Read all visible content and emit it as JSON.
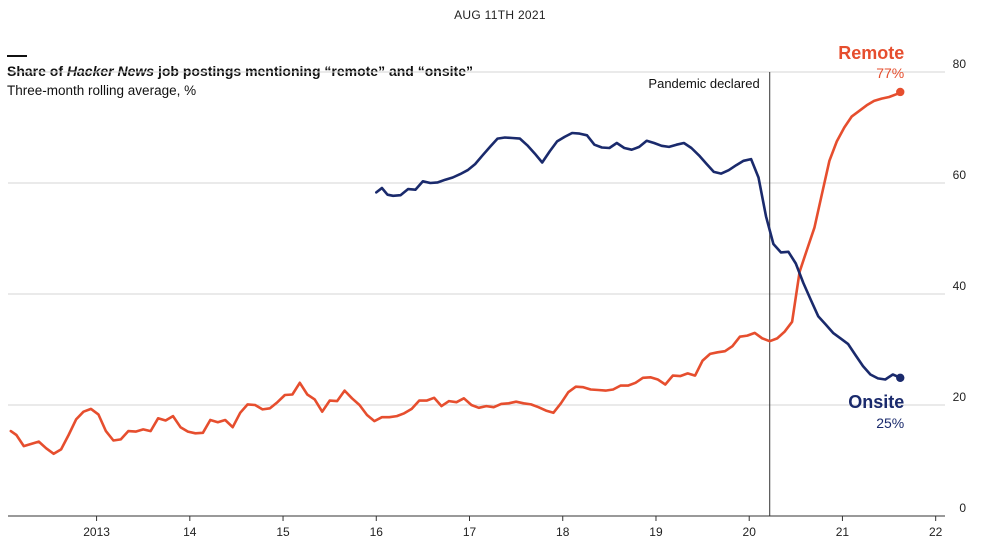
{
  "header": {
    "date": "AUG 11TH 2021",
    "title_pre": "Share of ",
    "title_em": "Hacker News",
    "title_post": " job postings mentioning “remote” and “onsite”",
    "subtitle": "Three-month rolling average, %"
  },
  "colors": {
    "remote": "#e64e2e",
    "onsite": "#1a2a6c",
    "grid": "#d6d6d6",
    "axis": "#333333"
  },
  "chart_data": {
    "type": "line",
    "title": "Share of Hacker News job postings mentioning “remote” and “onsite”",
    "subtitle": "Three-month rolling average, %",
    "ylim": [
      0,
      80
    ],
    "yticks": [
      0,
      20,
      40,
      60,
      80
    ],
    "xlim": [
      2012.05,
      2022.1
    ],
    "xticks": [
      {
        "x": 2013,
        "label": "2013"
      },
      {
        "x": 2014,
        "label": "14"
      },
      {
        "x": 2015,
        "label": "15"
      },
      {
        "x": 2016,
        "label": "16"
      },
      {
        "x": 2017,
        "label": "17"
      },
      {
        "x": 2018,
        "label": "18"
      },
      {
        "x": 2019,
        "label": "19"
      },
      {
        "x": 2020,
        "label": "20"
      },
      {
        "x": 2021,
        "label": "21"
      },
      {
        "x": 2022,
        "label": "22"
      }
    ],
    "grid": true,
    "annotation": {
      "x": 2020.22,
      "label": "Pandemic declared"
    },
    "series": [
      {
        "name": "Remote",
        "end_label": "77%",
        "color": "#e64e2e",
        "points": [
          [
            2012.08,
            15.3
          ],
          [
            2012.14,
            14.6
          ],
          [
            2012.22,
            12.6
          ],
          [
            2012.3,
            13.0
          ],
          [
            2012.38,
            13.4
          ],
          [
            2012.46,
            12.2
          ],
          [
            2012.54,
            11.2
          ],
          [
            2012.62,
            12.0
          ],
          [
            2012.7,
            14.6
          ],
          [
            2012.78,
            17.4
          ],
          [
            2012.86,
            18.8
          ],
          [
            2012.94,
            19.3
          ],
          [
            2013.02,
            18.3
          ],
          [
            2013.1,
            15.3
          ],
          [
            2013.18,
            13.6
          ],
          [
            2013.26,
            13.8
          ],
          [
            2013.34,
            15.3
          ],
          [
            2013.42,
            15.2
          ],
          [
            2013.5,
            15.6
          ],
          [
            2013.58,
            15.3
          ],
          [
            2013.66,
            17.6
          ],
          [
            2013.74,
            17.2
          ],
          [
            2013.82,
            18.0
          ],
          [
            2013.9,
            16.0
          ],
          [
            2013.98,
            15.2
          ],
          [
            2014.06,
            14.9
          ],
          [
            2014.14,
            15.0
          ],
          [
            2014.22,
            17.3
          ],
          [
            2014.3,
            16.9
          ],
          [
            2014.38,
            17.3
          ],
          [
            2014.46,
            16.0
          ],
          [
            2014.54,
            18.6
          ],
          [
            2014.62,
            20.1
          ],
          [
            2014.7,
            20.0
          ],
          [
            2014.78,
            19.2
          ],
          [
            2014.86,
            19.4
          ],
          [
            2014.94,
            20.5
          ],
          [
            2015.02,
            21.8
          ],
          [
            2015.1,
            21.9
          ],
          [
            2015.18,
            24.0
          ],
          [
            2015.26,
            21.9
          ],
          [
            2015.34,
            21.0
          ],
          [
            2015.42,
            18.8
          ],
          [
            2015.5,
            20.8
          ],
          [
            2015.58,
            20.7
          ],
          [
            2015.66,
            22.6
          ],
          [
            2015.74,
            21.2
          ],
          [
            2015.82,
            20.0
          ],
          [
            2015.9,
            18.2
          ],
          [
            2015.98,
            17.1
          ],
          [
            2016.06,
            17.8
          ],
          [
            2016.14,
            17.8
          ],
          [
            2016.22,
            18.0
          ],
          [
            2016.3,
            18.5
          ],
          [
            2016.38,
            19.3
          ],
          [
            2016.46,
            20.8
          ],
          [
            2016.54,
            20.8
          ],
          [
            2016.62,
            21.3
          ],
          [
            2016.7,
            19.8
          ],
          [
            2016.78,
            20.7
          ],
          [
            2016.86,
            20.5
          ],
          [
            2016.94,
            21.2
          ],
          [
            2017.02,
            20.0
          ],
          [
            2017.1,
            19.5
          ],
          [
            2017.18,
            19.8
          ],
          [
            2017.26,
            19.6
          ],
          [
            2017.34,
            20.2
          ],
          [
            2017.42,
            20.3
          ],
          [
            2017.5,
            20.6
          ],
          [
            2017.58,
            20.3
          ],
          [
            2017.66,
            20.1
          ],
          [
            2017.74,
            19.6
          ],
          [
            2017.82,
            19.0
          ],
          [
            2017.9,
            18.6
          ],
          [
            2017.98,
            20.3
          ],
          [
            2018.06,
            22.3
          ],
          [
            2018.14,
            23.3
          ],
          [
            2018.22,
            23.2
          ],
          [
            2018.3,
            22.8
          ],
          [
            2018.38,
            22.7
          ],
          [
            2018.46,
            22.6
          ],
          [
            2018.54,
            22.8
          ],
          [
            2018.62,
            23.5
          ],
          [
            2018.7,
            23.5
          ],
          [
            2018.78,
            24.0
          ],
          [
            2018.86,
            24.9
          ],
          [
            2018.94,
            25.0
          ],
          [
            2019.02,
            24.6
          ],
          [
            2019.1,
            23.7
          ],
          [
            2019.18,
            25.3
          ],
          [
            2019.26,
            25.2
          ],
          [
            2019.34,
            25.7
          ],
          [
            2019.42,
            25.3
          ],
          [
            2019.5,
            28.0
          ],
          [
            2019.58,
            29.2
          ],
          [
            2019.66,
            29.5
          ],
          [
            2019.74,
            29.7
          ],
          [
            2019.82,
            30.6
          ],
          [
            2019.9,
            32.3
          ],
          [
            2019.98,
            32.5
          ],
          [
            2020.06,
            33.0
          ],
          [
            2020.14,
            32.0
          ],
          [
            2020.22,
            31.5
          ],
          [
            2020.3,
            32.0
          ],
          [
            2020.38,
            33.2
          ],
          [
            2020.46,
            35.0
          ],
          [
            2020.54,
            44.0
          ],
          [
            2020.62,
            48.0
          ],
          [
            2020.7,
            52.0
          ],
          [
            2020.78,
            58.0
          ],
          [
            2020.86,
            64.0
          ],
          [
            2020.94,
            67.5
          ],
          [
            2021.02,
            70.0
          ],
          [
            2021.1,
            72.0
          ],
          [
            2021.18,
            73.0
          ],
          [
            2021.26,
            74.0
          ],
          [
            2021.34,
            74.8
          ],
          [
            2021.42,
            75.2
          ],
          [
            2021.5,
            75.5
          ],
          [
            2021.58,
            76.0
          ],
          [
            2021.62,
            76.4
          ]
        ]
      },
      {
        "name": "Onsite",
        "end_label": "25%",
        "color": "#1a2a6c",
        "points": [
          [
            2016.0,
            58.3
          ],
          [
            2016.06,
            59.1
          ],
          [
            2016.12,
            57.9
          ],
          [
            2016.18,
            57.7
          ],
          [
            2016.26,
            57.8
          ],
          [
            2016.34,
            58.9
          ],
          [
            2016.42,
            58.8
          ],
          [
            2016.5,
            60.3
          ],
          [
            2016.58,
            60.0
          ],
          [
            2016.66,
            60.1
          ],
          [
            2016.74,
            60.6
          ],
          [
            2016.82,
            61.0
          ],
          [
            2016.9,
            61.6
          ],
          [
            2016.98,
            62.3
          ],
          [
            2017.06,
            63.4
          ],
          [
            2017.14,
            65.0
          ],
          [
            2017.22,
            66.5
          ],
          [
            2017.3,
            68.0
          ],
          [
            2017.38,
            68.2
          ],
          [
            2017.46,
            68.1
          ],
          [
            2017.54,
            68.0
          ],
          [
            2017.62,
            66.8
          ],
          [
            2017.7,
            65.3
          ],
          [
            2017.78,
            63.7
          ],
          [
            2017.86,
            65.7
          ],
          [
            2017.94,
            67.5
          ],
          [
            2018.02,
            68.3
          ],
          [
            2018.1,
            69.0
          ],
          [
            2018.18,
            68.9
          ],
          [
            2018.26,
            68.6
          ],
          [
            2018.34,
            66.9
          ],
          [
            2018.42,
            66.4
          ],
          [
            2018.5,
            66.3
          ],
          [
            2018.58,
            67.2
          ],
          [
            2018.66,
            66.3
          ],
          [
            2018.74,
            66.0
          ],
          [
            2018.82,
            66.5
          ],
          [
            2018.9,
            67.6
          ],
          [
            2018.98,
            67.2
          ],
          [
            2019.06,
            66.7
          ],
          [
            2019.14,
            66.5
          ],
          [
            2019.22,
            66.9
          ],
          [
            2019.3,
            67.2
          ],
          [
            2019.38,
            66.3
          ],
          [
            2019.46,
            65.0
          ],
          [
            2019.54,
            63.5
          ],
          [
            2019.62,
            62.0
          ],
          [
            2019.7,
            61.7
          ],
          [
            2019.78,
            62.3
          ],
          [
            2019.86,
            63.2
          ],
          [
            2019.94,
            64.0
          ],
          [
            2020.02,
            64.3
          ],
          [
            2020.1,
            61.0
          ],
          [
            2020.18,
            54.0
          ],
          [
            2020.26,
            49.0
          ],
          [
            2020.34,
            47.5
          ],
          [
            2020.42,
            47.6
          ],
          [
            2020.5,
            45.5
          ],
          [
            2020.58,
            42.0
          ],
          [
            2020.66,
            39.0
          ],
          [
            2020.74,
            36.0
          ],
          [
            2020.82,
            34.5
          ],
          [
            2020.9,
            33.0
          ],
          [
            2020.98,
            32.0
          ],
          [
            2021.06,
            31.0
          ],
          [
            2021.14,
            29.0
          ],
          [
            2021.22,
            27.0
          ],
          [
            2021.3,
            25.5
          ],
          [
            2021.38,
            24.8
          ],
          [
            2021.46,
            24.6
          ],
          [
            2021.54,
            25.5
          ],
          [
            2021.58,
            25.2
          ],
          [
            2021.62,
            24.9
          ]
        ]
      }
    ]
  }
}
